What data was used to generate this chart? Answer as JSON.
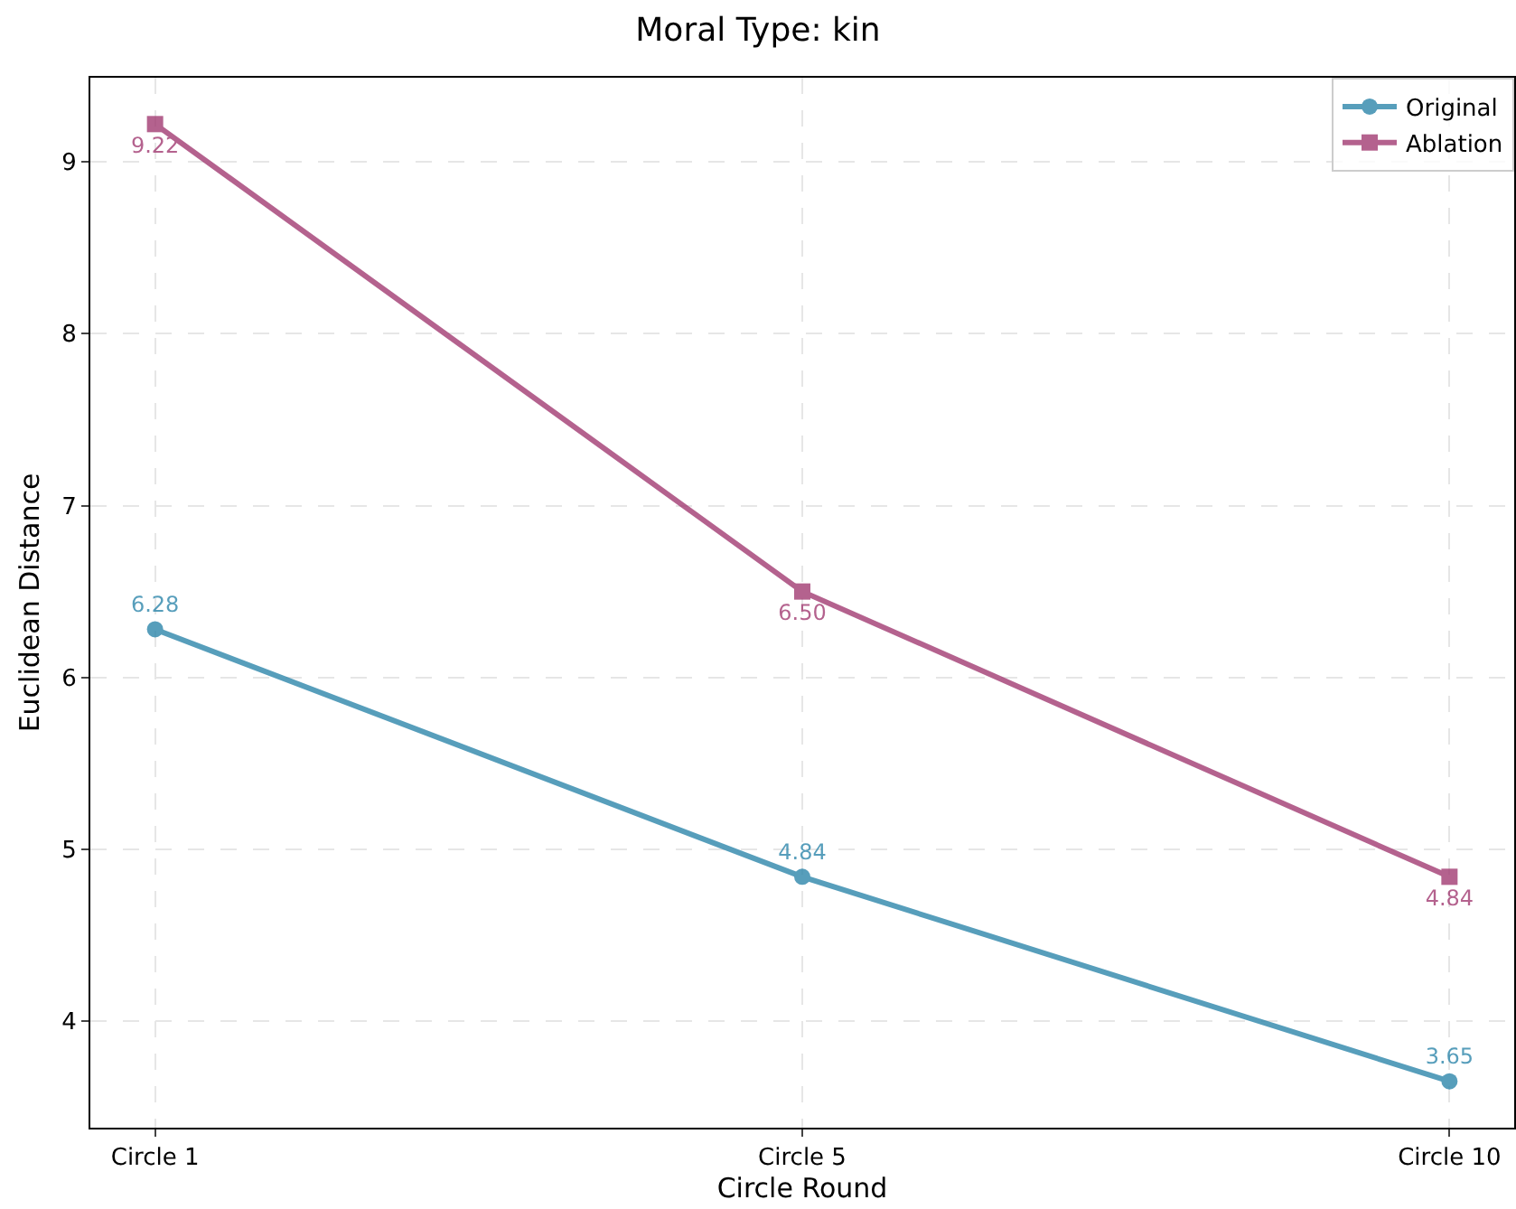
{
  "chart_data": {
    "type": "line",
    "title": "Moral Type: kin",
    "xlabel": "Circle Round",
    "ylabel": "Euclidean Distance",
    "categories": [
      "Circle 1",
      "Circle 5",
      "Circle 10"
    ],
    "series": [
      {
        "name": "Original",
        "color": "#2e86ab",
        "marker": "circle",
        "values": [
          6.28,
          4.84,
          3.65
        ],
        "value_labels": [
          "6.28",
          "4.84",
          "3.65"
        ]
      },
      {
        "name": "Ablation",
        "color": "#a23b72",
        "marker": "square",
        "values": [
          9.22,
          6.5,
          4.84
        ],
        "value_labels": [
          "9.22",
          "6.50",
          "4.84"
        ]
      }
    ],
    "ylim": [
      3.38,
      9.49
    ],
    "yticks": [
      4,
      5,
      6,
      7,
      8,
      9
    ],
    "grid": true,
    "legend": "top right",
    "line_style": "solid"
  }
}
